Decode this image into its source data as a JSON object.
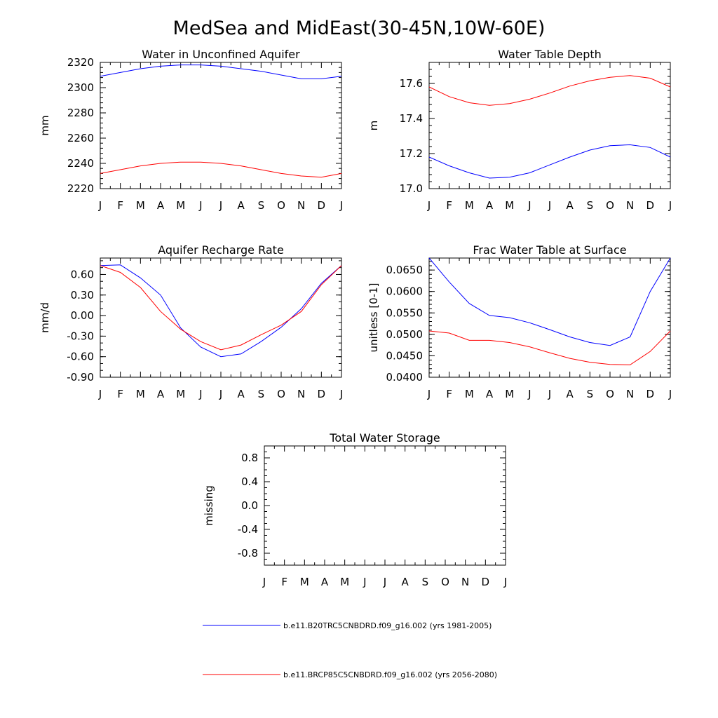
{
  "page": {
    "title": "MedSea and MidEast(30-45N,10W-60E)"
  },
  "months": [
    "J",
    "F",
    "M",
    "A",
    "M",
    "J",
    "J",
    "A",
    "S",
    "O",
    "N",
    "D",
    "J"
  ],
  "colors": {
    "series1": "#0000ff",
    "series2": "#ff0000"
  },
  "legend": [
    {
      "label": "b.e11.B20TRC5CNBDRD.f09_g16.002 (yrs 1981-2005)",
      "color": "#0000ff"
    },
    {
      "label": "b.e11.BRCP85C5CNBDRD.f09_g16.002 (yrs 2056-2080)",
      "color": "#ff0000"
    }
  ],
  "chart_data": [
    {
      "type": "line",
      "title": "Water in Unconfined Aquifer",
      "ylabel": "mm",
      "x": [
        "J",
        "F",
        "M",
        "A",
        "M",
        "J",
        "J",
        "A",
        "S",
        "O",
        "N",
        "D",
        "J"
      ],
      "ylim": [
        2220,
        2320
      ],
      "yticks": [
        "2220",
        "2240",
        "2260",
        "2280",
        "2300",
        "2320"
      ],
      "yminor": 5,
      "series": [
        {
          "values": [
            2309,
            2312,
            2315,
            2317,
            2318,
            2318,
            2317,
            2315,
            2313,
            2310,
            2307,
            2307,
            2309
          ]
        },
        {
          "values": [
            2232,
            2235,
            2238,
            2240,
            2241,
            2241,
            2240,
            2238,
            2235,
            2232,
            2230,
            2229,
            2232
          ]
        }
      ]
    },
    {
      "type": "line",
      "title": "Water Table Depth",
      "ylabel": "m",
      "x": [
        "J",
        "F",
        "M",
        "A",
        "M",
        "J",
        "J",
        "A",
        "S",
        "O",
        "N",
        "D",
        "J"
      ],
      "ylim": [
        17.0,
        17.72
      ],
      "yticks": [
        "17.0",
        "17.2",
        "17.4",
        "17.6"
      ],
      "yminor": 5,
      "series": [
        {
          "values": [
            17.18,
            17.13,
            17.09,
            17.06,
            17.065,
            17.09,
            17.135,
            17.18,
            17.22,
            17.245,
            17.25,
            17.235,
            17.18
          ]
        },
        {
          "values": [
            17.58,
            17.525,
            17.49,
            17.475,
            17.485,
            17.51,
            17.545,
            17.585,
            17.615,
            17.635,
            17.645,
            17.63,
            17.58
          ]
        }
      ]
    },
    {
      "type": "line",
      "title": "Aquifer Recharge Rate",
      "ylabel": "mm/d",
      "x": [
        "J",
        "F",
        "M",
        "A",
        "M",
        "J",
        "J",
        "A",
        "S",
        "O",
        "N",
        "D",
        "J"
      ],
      "ylim": [
        -0.9,
        0.84
      ],
      "yticks": [
        "-0.90",
        "-0.60",
        "-0.30",
        "0.00",
        "0.30",
        "0.60"
      ],
      "yminor": 3,
      "series": [
        {
          "values": [
            0.73,
            0.74,
            0.55,
            0.3,
            -0.18,
            -0.46,
            -0.6,
            -0.56,
            -0.38,
            -0.17,
            0.1,
            0.47,
            0.73
          ]
        },
        {
          "values": [
            0.73,
            0.63,
            0.41,
            0.06,
            -0.2,
            -0.38,
            -0.5,
            -0.43,
            -0.28,
            -0.14,
            0.06,
            0.45,
            0.73
          ]
        }
      ]
    },
    {
      "type": "line",
      "title": "Frac Water Table at Surface",
      "ylabel": "unitless [0-1]",
      "x": [
        "J",
        "F",
        "M",
        "A",
        "M",
        "J",
        "J",
        "A",
        "S",
        "O",
        "N",
        "D",
        "J"
      ],
      "ylim": [
        0.04,
        0.0678
      ],
      "yticks": [
        "0.0400",
        "0.0450",
        "0.0500",
        "0.0550",
        "0.0600",
        "0.0650"
      ],
      "yminor": 5,
      "series": [
        {
          "values": [
            0.0678,
            0.0622,
            0.0572,
            0.0544,
            0.0539,
            0.0527,
            0.0511,
            0.0494,
            0.0481,
            0.0474,
            0.0494,
            0.06,
            0.0678
          ]
        },
        {
          "values": [
            0.0508,
            0.0503,
            0.0486,
            0.0486,
            0.0481,
            0.0471,
            0.0457,
            0.0444,
            0.0435,
            0.043,
            0.0429,
            0.046,
            0.0508
          ]
        }
      ]
    },
    {
      "type": "line",
      "title": "Total Water Storage",
      "ylabel": "missing",
      "x": [
        "J",
        "F",
        "M",
        "A",
        "M",
        "J",
        "J",
        "A",
        "S",
        "O",
        "N",
        "D",
        "J"
      ],
      "ylim": [
        -1.0,
        1.0
      ],
      "yticks": [
        "-0.8",
        "-0.4",
        "0.0",
        "0.4",
        "0.8"
      ],
      "yminor": 4,
      "series": []
    }
  ]
}
